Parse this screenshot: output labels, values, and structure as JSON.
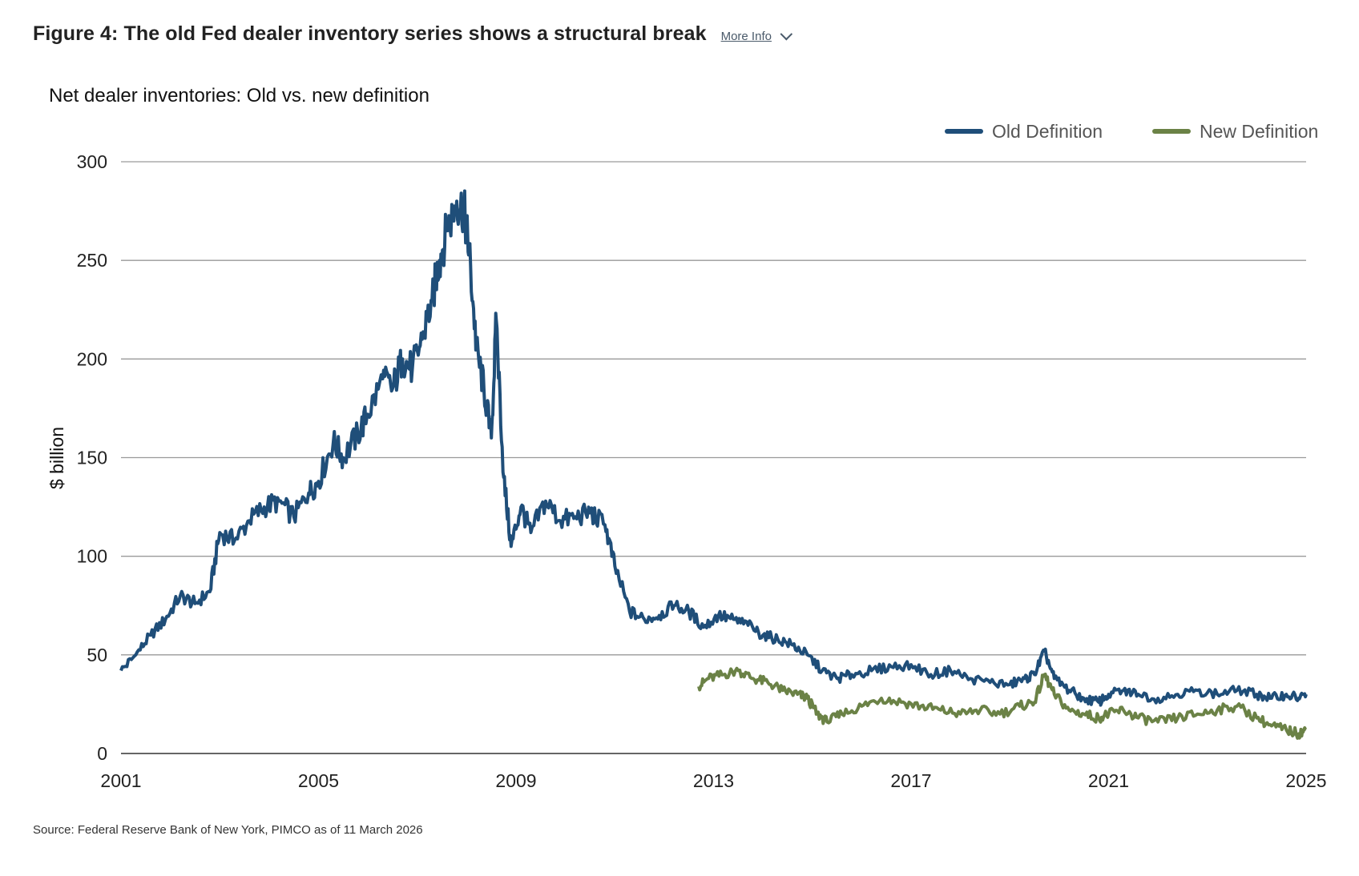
{
  "header": {
    "title": "Figure 4: The old Fed dealer inventory series shows a structural break",
    "more_info_label": "More Info",
    "more_info_icon": "chevron-down-icon"
  },
  "source": "Source: Federal Reserve Bank of New York, PIMCO as of 11 March 2026",
  "chart_data": {
    "type": "line",
    "title": "Net dealer inventories: Old vs. new definition",
    "xlabel": "",
    "ylabel": "$ billion",
    "xlim": [
      2001,
      2025
    ],
    "ylim": [
      0,
      300
    ],
    "x_ticks": [
      "2001",
      "2005",
      "2009",
      "2013",
      "2017",
      "2021",
      "2025"
    ],
    "y_ticks": [
      "0",
      "50",
      "100",
      "150",
      "200",
      "250",
      "300"
    ],
    "grid": true,
    "legend": "top-right",
    "series": [
      {
        "name": "Old Definition",
        "color": "#1f4e79",
        "x": [
          2001.0,
          2001.3,
          2001.6,
          2001.9,
          2002.2,
          2002.5,
          2002.8,
          2003.0,
          2003.3,
          2003.6,
          2003.9,
          2004.2,
          2004.5,
          2004.8,
          2005.0,
          2005.3,
          2005.5,
          2005.8,
          2006.0,
          2006.3,
          2006.5,
          2006.7,
          2006.9,
          2007.1,
          2007.3,
          2007.45,
          2007.6,
          2007.8,
          2007.95,
          2008.05,
          2008.2,
          2008.35,
          2008.5,
          2008.6,
          2008.75,
          2008.9,
          2009.1,
          2009.3,
          2009.6,
          2009.9,
          2010.2,
          2010.5,
          2010.8,
          2011.0,
          2011.3,
          2011.6,
          2011.9,
          2012.2,
          2012.5,
          2012.8,
          2013.1,
          2013.4,
          2013.7,
          2014.0,
          2014.3,
          2014.6,
          2014.9,
          2015.2,
          2015.5,
          2015.8,
          2016.2,
          2016.6,
          2017.0,
          2017.4,
          2017.8,
          2018.2,
          2018.6,
          2019.0,
          2019.3,
          2019.5,
          2019.7,
          2019.9,
          2020.2,
          2020.5,
          2020.8,
          2021.0,
          2021.3,
          2021.6,
          2022.0,
          2022.4,
          2022.8,
          2023.2,
          2023.6,
          2024.0,
          2024.3,
          2024.6,
          2024.85,
          2025.0
        ],
        "values": [
          42,
          50,
          60,
          68,
          80,
          76,
          82,
          112,
          108,
          118,
          125,
          128,
          120,
          132,
          138,
          158,
          150,
          162,
          172,
          190,
          185,
          200,
          195,
          210,
          230,
          250,
          265,
          280,
          275,
          255,
          205,
          185,
          160,
          220,
          140,
          105,
          125,
          112,
          128,
          118,
          120,
          122,
          116,
          95,
          72,
          68,
          70,
          75,
          72,
          64,
          70,
          68,
          65,
          60,
          58,
          55,
          50,
          42,
          38,
          40,
          42,
          44,
          45,
          40,
          42,
          38,
          36,
          35,
          38,
          40,
          52,
          38,
          32,
          28,
          26,
          30,
          32,
          30,
          28,
          30,
          32,
          30,
          32,
          30,
          28,
          30,
          28,
          30
        ]
      },
      {
        "name": "New Definition",
        "color": "#6b8246",
        "x": [
          2012.7,
          2012.9,
          2013.2,
          2013.5,
          2013.8,
          2014.1,
          2014.4,
          2014.7,
          2014.9,
          2015.1,
          2015.3,
          2015.6,
          2016.0,
          2016.4,
          2016.8,
          2017.2,
          2017.6,
          2018.0,
          2018.4,
          2018.8,
          2019.2,
          2019.5,
          2019.7,
          2019.9,
          2020.2,
          2020.5,
          2020.8,
          2021.0,
          2021.3,
          2021.6,
          2022.0,
          2022.4,
          2022.8,
          2023.2,
          2023.6,
          2024.0,
          2024.3,
          2024.6,
          2024.85,
          2025.0
        ],
        "values": [
          34,
          38,
          40,
          42,
          38,
          36,
          32,
          30,
          28,
          20,
          16,
          20,
          24,
          28,
          26,
          24,
          22,
          20,
          22,
          20,
          24,
          26,
          40,
          30,
          22,
          20,
          18,
          20,
          22,
          18,
          16,
          18,
          20,
          22,
          24,
          18,
          14,
          12,
          10,
          12
        ]
      }
    ]
  }
}
